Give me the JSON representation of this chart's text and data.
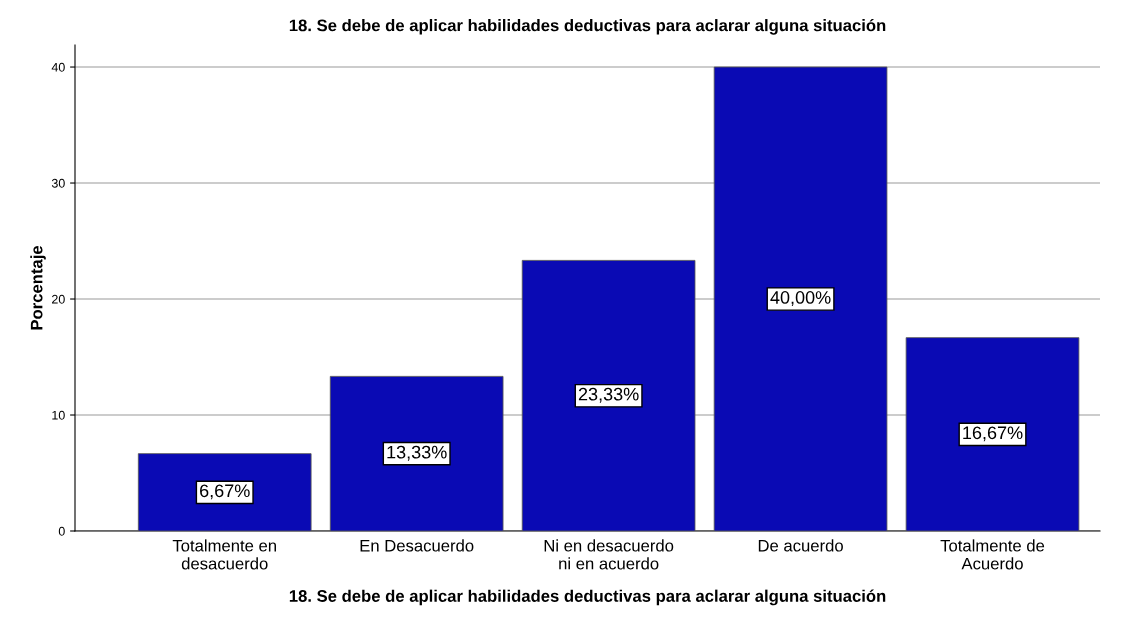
{
  "chart_data": {
    "type": "bar",
    "title": "18. Se debe de aplicar habilidades deductivas para aclarar alguna situación",
    "xlabel": "18. Se debe de aplicar habilidades deductivas para aclarar alguna situación",
    "ylabel": "Porcentaje",
    "categories": [
      "Totalmente en\ndesacuerdo",
      "En Desacuerdo",
      "Ni en desacuerdo\nni en acuerdo",
      "De acuerdo",
      "Totalmente de\nAcuerdo"
    ],
    "values": [
      6.67,
      13.33,
      23.33,
      40.0,
      16.67
    ],
    "value_labels": [
      "6,67%",
      "13,33%",
      "23,33%",
      "40,00%",
      "16,67%"
    ],
    "color": "#0a0ab4",
    "ylim": [
      0,
      41.9
    ],
    "yticks": [
      0,
      10,
      20,
      30,
      40
    ],
    "grid": "y",
    "legend": false
  }
}
